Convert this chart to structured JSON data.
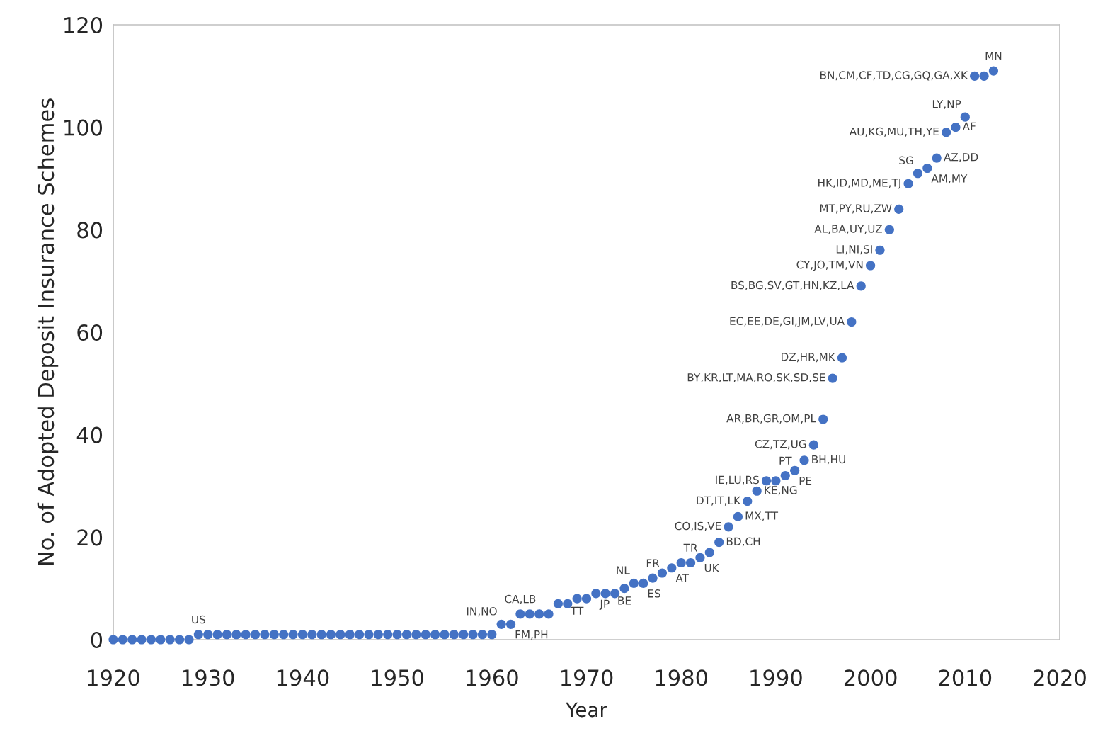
{
  "chart_data": {
    "type": "scatter",
    "xlabel": "Year",
    "ylabel": "No. of Adopted Deposit Insurance Schemes",
    "x": [
      1920,
      1921,
      1922,
      1923,
      1924,
      1925,
      1926,
      1927,
      1928,
      1929,
      1930,
      1931,
      1932,
      1933,
      1934,
      1935,
      1936,
      1937,
      1938,
      1939,
      1940,
      1941,
      1942,
      1943,
      1944,
      1945,
      1946,
      1947,
      1948,
      1949,
      1950,
      1951,
      1952,
      1953,
      1954,
      1955,
      1956,
      1957,
      1958,
      1959,
      1960,
      1961,
      1962,
      1963,
      1964,
      1965,
      1966,
      1967,
      1968,
      1969,
      1970,
      1971,
      1972,
      1973,
      1974,
      1975,
      1976,
      1977,
      1978,
      1979,
      1980,
      1981,
      1982,
      1983,
      1984,
      1985,
      1986,
      1987,
      1988,
      1989,
      1990,
      1991,
      1992,
      1993,
      1994,
      1995,
      1996,
      1997,
      1998,
      1999,
      2000,
      2001,
      2002,
      2003,
      2004,
      2005,
      2006,
      2007,
      2008,
      2009,
      2010,
      2011,
      2012,
      2013
    ],
    "series": [
      {
        "color": "#4472c4",
        "values": [
          0,
          0,
          0,
          0,
          0,
          0,
          0,
          0,
          0,
          1,
          1,
          1,
          1,
          1,
          1,
          1,
          1,
          1,
          1,
          1,
          1,
          1,
          1,
          1,
          1,
          1,
          1,
          1,
          1,
          1,
          1,
          1,
          1,
          1,
          1,
          1,
          1,
          1,
          1,
          1,
          1,
          3,
          3,
          5,
          5,
          5,
          5,
          7,
          7,
          8,
          8,
          9,
          9,
          9,
          10,
          11,
          11,
          12,
          13,
          14,
          15,
          15,
          16,
          17,
          19,
          22,
          24,
          27,
          29,
          31,
          31,
          32,
          33,
          35,
          38,
          43,
          51,
          55,
          62,
          69,
          73,
          76,
          80,
          84,
          89,
          91,
          92,
          94,
          99,
          100,
          102,
          110,
          110,
          111
        ]
      }
    ],
    "xlim": [
      1920,
      2020
    ],
    "xticks": [
      1920,
      1930,
      1940,
      1950,
      1960,
      1970,
      1980,
      1990,
      2000,
      2010,
      2020
    ],
    "ylim": [
      0,
      120
    ],
    "yticks": [
      0,
      20,
      40,
      60,
      80,
      100,
      120
    ],
    "grid": false,
    "marker": "circle",
    "annotations": [
      {
        "text": "US",
        "x": 1929,
        "y": 1
      },
      {
        "text": "IN,NO",
        "x": 1961,
        "y": 3
      },
      {
        "text": "FM,PH",
        "x": 1962,
        "y": 3
      },
      {
        "text": "CA,LB",
        "x": 1963,
        "y": 5
      },
      {
        "text": "TT",
        "x": 1969,
        "y": 8
      },
      {
        "text": "JP",
        "x": 1971,
        "y": 9
      },
      {
        "text": "BE",
        "x": 1974,
        "y": 10
      },
      {
        "text": "NL",
        "x": 1975,
        "y": 11
      },
      {
        "text": "ES",
        "x": 1976,
        "y": 11
      },
      {
        "text": "FR",
        "x": 1977,
        "y": 12
      },
      {
        "text": "AT",
        "x": 1979,
        "y": 14
      },
      {
        "text": "TR",
        "x": 1981,
        "y": 15
      },
      {
        "text": "UK",
        "x": 1982,
        "y": 16
      },
      {
        "text": "BD,CH",
        "x": 1984,
        "y": 19
      },
      {
        "text": "CO,IS,VE",
        "x": 1985,
        "y": 22
      },
      {
        "text": "MX,TT",
        "x": 1986,
        "y": 24
      },
      {
        "text": "DT,IT,LK",
        "x": 1987,
        "y": 27
      },
      {
        "text": "KE,NG",
        "x": 1988,
        "y": 29
      },
      {
        "text": "IE,LU,RS",
        "x": 1989,
        "y": 31
      },
      {
        "text": "PT",
        "x": 1991,
        "y": 32
      },
      {
        "text": "PE",
        "x": 1992,
        "y": 33
      },
      {
        "text": "BH,HU",
        "x": 1993,
        "y": 35
      },
      {
        "text": "CZ,TZ,UG",
        "x": 1994,
        "y": 38
      },
      {
        "text": "AR,BR,GR,OM,PL",
        "x": 1995,
        "y": 43
      },
      {
        "text": "BY,KR,LT,MA,RO,SK,SD,SE",
        "x": 1996,
        "y": 51
      },
      {
        "text": "DZ,HR,MK",
        "x": 1997,
        "y": 55
      },
      {
        "text": "EC,EE,DE,GI,JM,LV,UA",
        "x": 1998,
        "y": 62
      },
      {
        "text": "BS,BG,SV,GT,HN,KZ,LA",
        "x": 1999,
        "y": 69
      },
      {
        "text": "CY,JO,TM,VN",
        "x": 2000,
        "y": 73
      },
      {
        "text": "LI,NI,SI",
        "x": 2001,
        "y": 76
      },
      {
        "text": "AL,BA,UY,UZ",
        "x": 2002,
        "y": 80
      },
      {
        "text": "MT,PY,RU,ZW",
        "x": 2003,
        "y": 84
      },
      {
        "text": "HK,ID,MD,ME,TJ",
        "x": 2004,
        "y": 89
      },
      {
        "text": "SG",
        "x": 2005,
        "y": 91
      },
      {
        "text": "AM,MY",
        "x": 2006,
        "y": 92
      },
      {
        "text": "AZ,DD",
        "x": 2007,
        "y": 94
      },
      {
        "text": "AU,KG,MU,TH,YE",
        "x": 2008,
        "y": 99
      },
      {
        "text": "AF",
        "x": 2009,
        "y": 100
      },
      {
        "text": "LY,NP",
        "x": 2010,
        "y": 102
      },
      {
        "text": "BN,CM,CF,TD,CG,GQ,GA,XK",
        "x": 2011,
        "y": 110
      },
      {
        "text": "MN",
        "x": 2013,
        "y": 111
      }
    ]
  }
}
